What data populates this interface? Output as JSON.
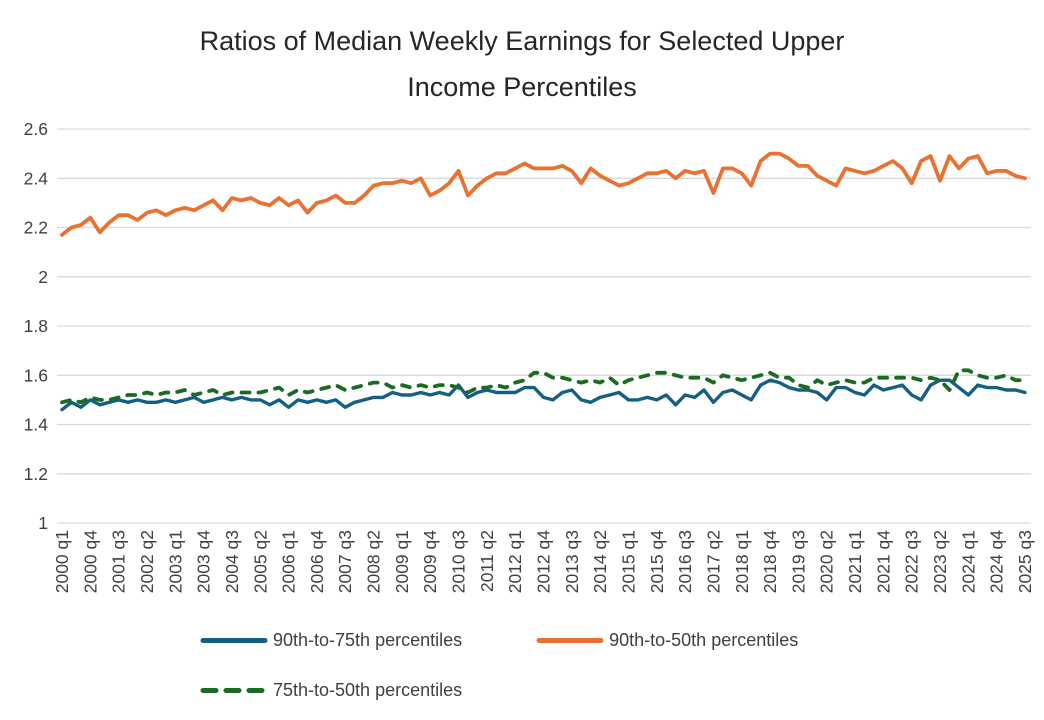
{
  "header": {
    "title_line1": "Ratios of Median Weekly Earnings for Selected Upper",
    "title_line2": "Income Percentiles"
  },
  "colors": {
    "background": "#FFFFFF",
    "gridline": "#D9D9D9",
    "axis_text": "#404040",
    "title_text": "#262626",
    "legend_text": "#404040",
    "series_blue": "#156082",
    "series_orange": "#E97132",
    "series_green": "#196B24"
  },
  "chart_data": {
    "type": "line",
    "title": "Ratios of Median Weekly Earnings for Selected Upper Income Percentiles",
    "xlabel": "",
    "ylabel": "",
    "ylim": [
      1.0,
      2.6
    ],
    "y_ticks": [
      "1",
      "1.2",
      "1.4",
      "1.6",
      "1.8",
      "2",
      "2.2",
      "2.4",
      "2.6"
    ],
    "grid": "horizontal-only",
    "legend_position": "bottom",
    "x_unit": "quarter",
    "x_first": "2000 q1",
    "x_last": "2025 q3",
    "x_tick_every": 3,
    "x_tick_labels": [
      "2000 q1",
      "2000 q4",
      "2001 q3",
      "2002 q2",
      "2003 q1",
      "2003 q4",
      "2004 q3",
      "2005 q2",
      "2006 q1",
      "2006 q4",
      "2007 q3",
      "2008 q2",
      "2009 q1",
      "2009 q4",
      "2010 q3",
      "2011 q2",
      "2012 q1",
      "2012 q4",
      "2013 q3",
      "2014 q2",
      "2015 q1",
      "2015 q4",
      "2016 q3",
      "2017 q2",
      "2018 q1",
      "2018 q4",
      "2019 q3",
      "2020 q2",
      "2021 q1",
      "2021 q4",
      "2022 q3",
      "2023 q2",
      "2024 q1",
      "2024 q4",
      "2025 q3"
    ],
    "series": [
      {
        "id": "90th-to-75th-percentiles",
        "name": "90th-to-75th percentiles",
        "color": "#156082",
        "style": "solid",
        "width": 3.4,
        "values": [
          1.46,
          1.49,
          1.47,
          1.5,
          1.48,
          1.49,
          1.5,
          1.49,
          1.5,
          1.49,
          1.49,
          1.5,
          1.49,
          1.5,
          1.51,
          1.49,
          1.5,
          1.51,
          1.5,
          1.51,
          1.5,
          1.5,
          1.48,
          1.5,
          1.47,
          1.5,
          1.49,
          1.5,
          1.49,
          1.5,
          1.47,
          1.49,
          1.5,
          1.51,
          1.51,
          1.53,
          1.52,
          1.52,
          1.53,
          1.52,
          1.53,
          1.52,
          1.56,
          1.51,
          1.53,
          1.54,
          1.53,
          1.53,
          1.53,
          1.55,
          1.55,
          1.51,
          1.5,
          1.53,
          1.54,
          1.5,
          1.49,
          1.51,
          1.52,
          1.53,
          1.5,
          1.5,
          1.51,
          1.5,
          1.52,
          1.48,
          1.52,
          1.51,
          1.54,
          1.49,
          1.53,
          1.54,
          1.52,
          1.5,
          1.56,
          1.58,
          1.57,
          1.55,
          1.54,
          1.54,
          1.53,
          1.5,
          1.55,
          1.55,
          1.53,
          1.52,
          1.56,
          1.54,
          1.55,
          1.56,
          1.52,
          1.5,
          1.56,
          1.58,
          1.58,
          1.55,
          1.52,
          1.56,
          1.55,
          1.55,
          1.54,
          1.54,
          1.53
        ]
      },
      {
        "id": "90th-to-50th-percentiles",
        "name": "90th-to-50th percentiles",
        "color": "#E97132",
        "style": "solid",
        "width": 3.8,
        "values": [
          2.17,
          2.2,
          2.21,
          2.24,
          2.18,
          2.22,
          2.25,
          2.25,
          2.23,
          2.26,
          2.27,
          2.25,
          2.27,
          2.28,
          2.27,
          2.29,
          2.31,
          2.27,
          2.32,
          2.31,
          2.32,
          2.3,
          2.29,
          2.32,
          2.29,
          2.31,
          2.26,
          2.3,
          2.31,
          2.33,
          2.3,
          2.3,
          2.33,
          2.37,
          2.38,
          2.38,
          2.39,
          2.38,
          2.4,
          2.33,
          2.35,
          2.38,
          2.43,
          2.33,
          2.37,
          2.4,
          2.42,
          2.42,
          2.44,
          2.46,
          2.44,
          2.44,
          2.44,
          2.45,
          2.43,
          2.38,
          2.44,
          2.41,
          2.39,
          2.37,
          2.38,
          2.4,
          2.42,
          2.42,
          2.43,
          2.4,
          2.43,
          2.42,
          2.43,
          2.34,
          2.44,
          2.44,
          2.42,
          2.37,
          2.47,
          2.5,
          2.5,
          2.48,
          2.45,
          2.45,
          2.41,
          2.39,
          2.37,
          2.44,
          2.43,
          2.42,
          2.43,
          2.45,
          2.47,
          2.44,
          2.38,
          2.47,
          2.49,
          2.39,
          2.49,
          2.44,
          2.48,
          2.49,
          2.42,
          2.43,
          2.43,
          2.41,
          2.4
        ]
      },
      {
        "id": "75th-to-50th-percentiles",
        "name": "75th-to-50th percentiles",
        "color": "#196B24",
        "style": "dashed",
        "width": 3.8,
        "values": [
          1.49,
          1.5,
          1.49,
          1.51,
          1.5,
          1.5,
          1.51,
          1.52,
          1.52,
          1.53,
          1.52,
          1.53,
          1.53,
          1.54,
          1.52,
          1.53,
          1.54,
          1.52,
          1.53,
          1.53,
          1.53,
          1.53,
          1.54,
          1.55,
          1.52,
          1.54,
          1.53,
          1.54,
          1.55,
          1.56,
          1.54,
          1.55,
          1.56,
          1.57,
          1.57,
          1.55,
          1.56,
          1.55,
          1.56,
          1.55,
          1.56,
          1.56,
          1.55,
          1.53,
          1.55,
          1.55,
          1.56,
          1.55,
          1.57,
          1.58,
          1.61,
          1.61,
          1.59,
          1.59,
          1.58,
          1.57,
          1.58,
          1.57,
          1.59,
          1.56,
          1.58,
          1.59,
          1.6,
          1.61,
          1.61,
          1.6,
          1.59,
          1.59,
          1.59,
          1.57,
          1.6,
          1.59,
          1.58,
          1.59,
          1.6,
          1.61,
          1.59,
          1.59,
          1.56,
          1.55,
          1.58,
          1.56,
          1.57,
          1.58,
          1.57,
          1.57,
          1.59,
          1.59,
          1.59,
          1.59,
          1.59,
          1.58,
          1.59,
          1.58,
          1.54,
          1.62,
          1.62,
          1.6,
          1.59,
          1.59,
          1.6,
          1.58,
          1.58
        ]
      }
    ]
  }
}
